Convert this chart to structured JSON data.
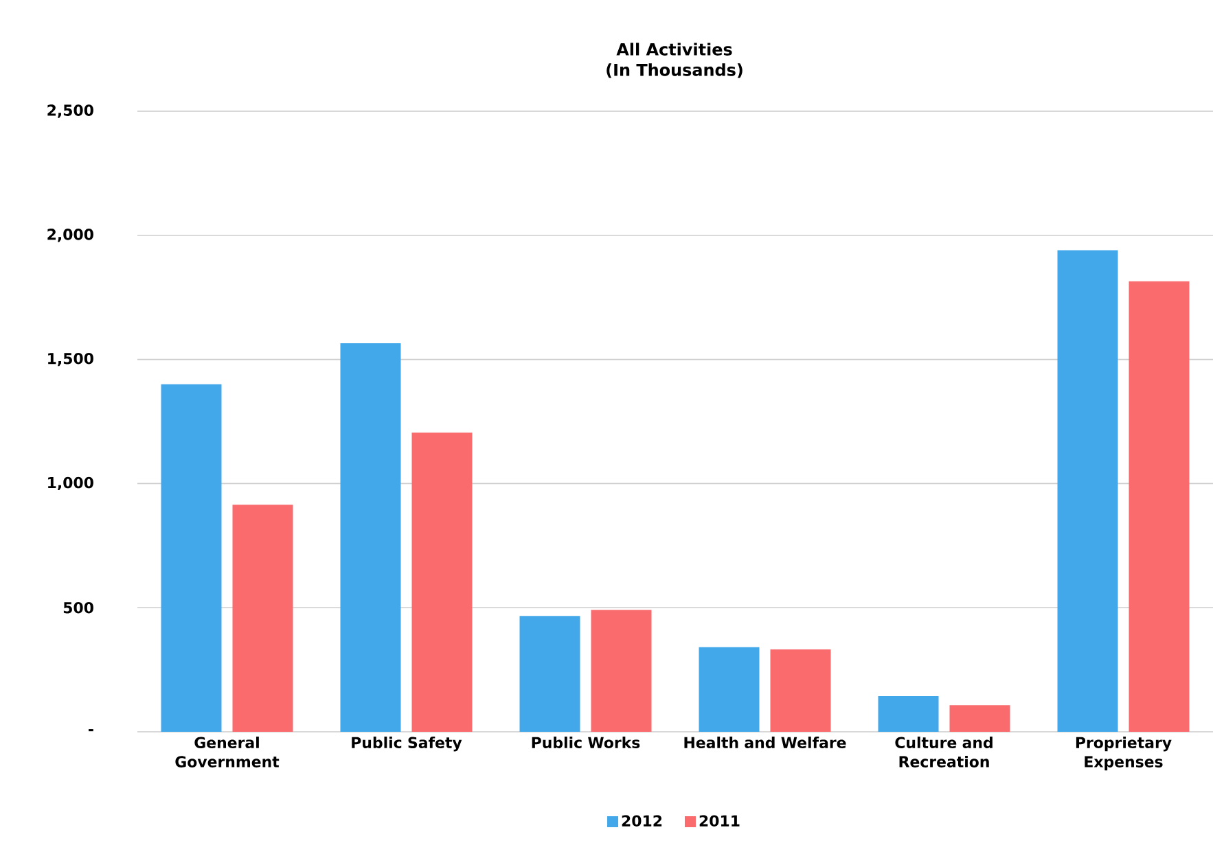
{
  "chart_data": {
    "type": "bar",
    "title": "All Activities",
    "subtitle": "(In Thousands)",
    "categories": [
      "General Government",
      "Public Safety",
      "Public Works",
      "Health and Welfare",
      "Culture and Recreation",
      "Proprietary Expenses"
    ],
    "series": [
      {
        "name": "2012",
        "color": "#42a8ea",
        "values": [
          1400,
          1565,
          467,
          341,
          144,
          1940
        ]
      },
      {
        "name": "2011",
        "color": "#fa6b6e",
        "values": [
          915,
          1205,
          491,
          332,
          107,
          1815
        ]
      }
    ],
    "ylim": [
      0,
      2500
    ],
    "yticks": [
      {
        "value": 0,
        "label": "-"
      },
      500,
      {
        "value": 1000,
        "label": "1,000"
      },
      {
        "value": 1500,
        "label": "1,500"
      },
      {
        "value": 2000,
        "label": "2,000"
      },
      {
        "value": 2500,
        "label": "2,500"
      }
    ],
    "grid": "y",
    "legend": "bottom"
  }
}
